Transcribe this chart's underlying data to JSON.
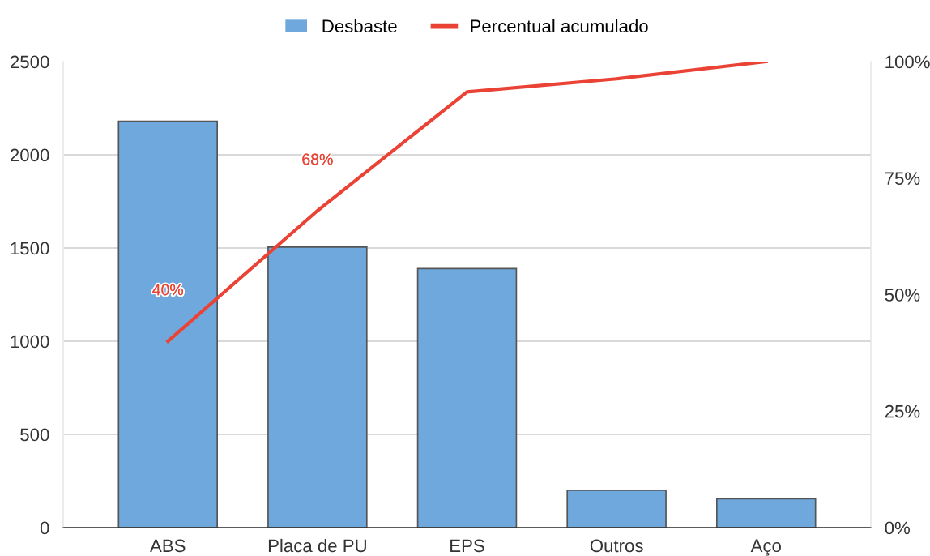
{
  "chart_data": {
    "type": "bar",
    "categories": [
      "ABS",
      "Placa de PU",
      "EPS",
      "Outros",
      "Aço"
    ],
    "series": [
      {
        "name": "Desbaste",
        "color": "#6fa8dc",
        "values": [
          2180,
          1505,
          1390,
          200,
          155
        ]
      },
      {
        "name": "Percentual acumulado",
        "type": "line",
        "axis": "y2",
        "color": "#ea4335",
        "values": [
          40,
          68,
          93.5,
          96.3,
          100
        ],
        "value_labels": [
          "40%",
          "68%",
          null,
          null,
          null
        ]
      }
    ],
    "ylim": [
      0,
      2500
    ],
    "yticks": [
      0,
      500,
      1000,
      1500,
      2000,
      2500
    ],
    "y2lim": [
      0,
      100
    ],
    "y2ticks": [
      {
        "value": 0,
        "label": "0%"
      },
      {
        "value": 25,
        "label": "25%"
      },
      {
        "value": 50,
        "label": "50%"
      },
      {
        "value": 75,
        "label": "75%"
      },
      {
        "value": 100,
        "label": "100%"
      }
    ],
    "grid": "y",
    "legend": "top",
    "marker": "none",
    "line_style": "solid"
  }
}
